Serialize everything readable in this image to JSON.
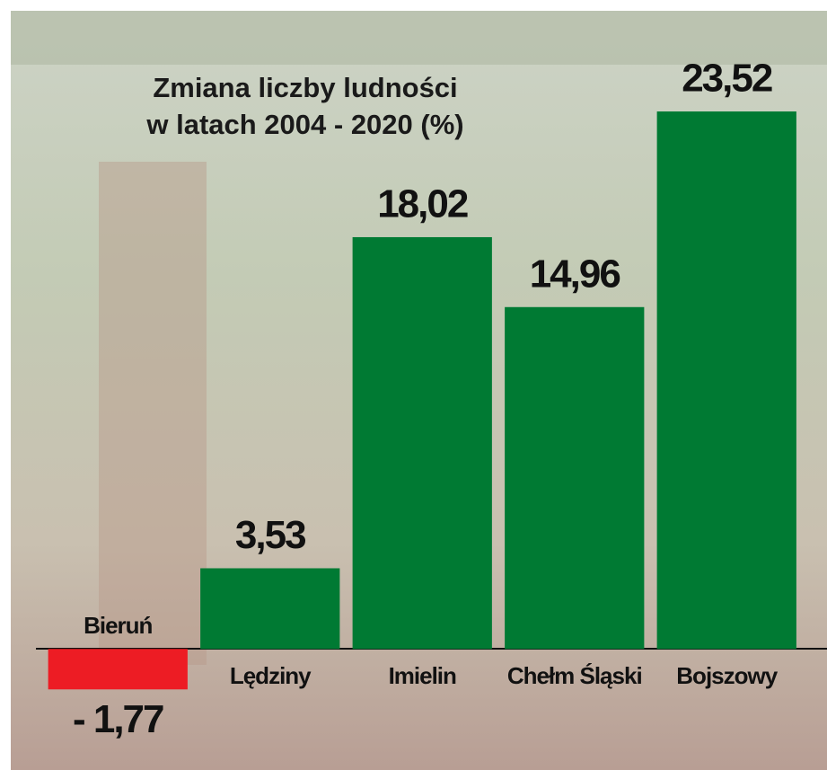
{
  "chart_data": {
    "type": "bar",
    "title": [
      "Zmiana liczby ludności",
      "w latach 2004 - 2020 (%)"
    ],
    "categories": [
      "Bieruń",
      "Lędziny",
      "Imielin",
      "Chełm Śląski",
      "Bojszowy"
    ],
    "values": [
      -1.77,
      3.53,
      18.02,
      14.96,
      23.52
    ],
    "value_labels": [
      "- 1,77",
      "3,53",
      "18,02",
      "14,96",
      "23,52"
    ],
    "colors": [
      "#ed1c24",
      "#007a33",
      "#007a33",
      "#007a33",
      "#007a33"
    ],
    "ylim": [
      -4,
      26
    ]
  }
}
